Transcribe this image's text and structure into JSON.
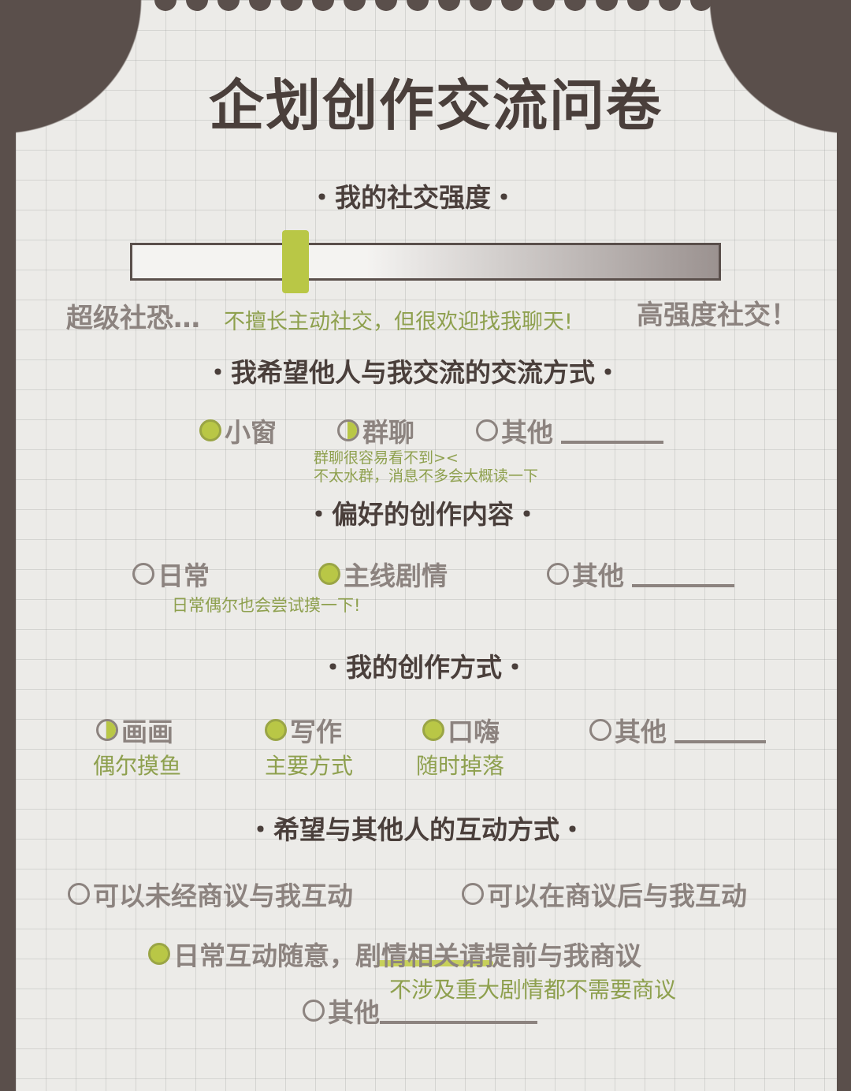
{
  "title": "企划创作交流问卷",
  "colors": {
    "background": "#5a4f4b",
    "paper": "#ecebe8",
    "accent": "#b9c746",
    "note_text": "#8ea04e",
    "option_text": "#8c837f",
    "heading_text": "#4a3f3b"
  },
  "social": {
    "heading": "・我的社交强度・",
    "level_percent": 28,
    "low_label": "超级社恐…",
    "high_label": "高强度社交！",
    "note": "不擅长主动社交，但很欢迎找我聊天!"
  },
  "contact": {
    "heading": "・我希望他人与我交流的交流方式・",
    "options": [
      {
        "label": "小窗",
        "selected": "full"
      },
      {
        "label": "群聊",
        "selected": "half"
      },
      {
        "label": "其他",
        "selected": "none"
      }
    ],
    "note_line1": "群聊很容易看不到><",
    "note_line2": "不太水群，消息不多会大概读一下"
  },
  "content": {
    "heading": "・偏好的创作内容・",
    "options": [
      {
        "label": "日常",
        "selected": "none"
      },
      {
        "label": "主线剧情",
        "selected": "full"
      },
      {
        "label": "其他",
        "selected": "none"
      }
    ],
    "note": "日常偶尔也会尝试摸一下!"
  },
  "method": {
    "heading": "・我的创作方式・",
    "options": [
      {
        "label": "画画",
        "selected": "half",
        "note": "偶尔摸鱼"
      },
      {
        "label": "写作",
        "selected": "full",
        "note": "主要方式"
      },
      {
        "label": "口嗨",
        "selected": "full",
        "note": "随时掉落"
      },
      {
        "label": "其他",
        "selected": "none"
      }
    ]
  },
  "interaction": {
    "heading": "・希望与其他人的互动方式・",
    "options": [
      {
        "label": "可以未经商议与我互动",
        "selected": "none"
      },
      {
        "label": "可以在商议后与我互动",
        "selected": "none"
      },
      {
        "label": "日常互动随意，剧情相关请提前与我商议",
        "selected": "full"
      },
      {
        "label": "其他",
        "selected": "none"
      }
    ],
    "note": "不涉及重大剧情都不需要商议"
  }
}
